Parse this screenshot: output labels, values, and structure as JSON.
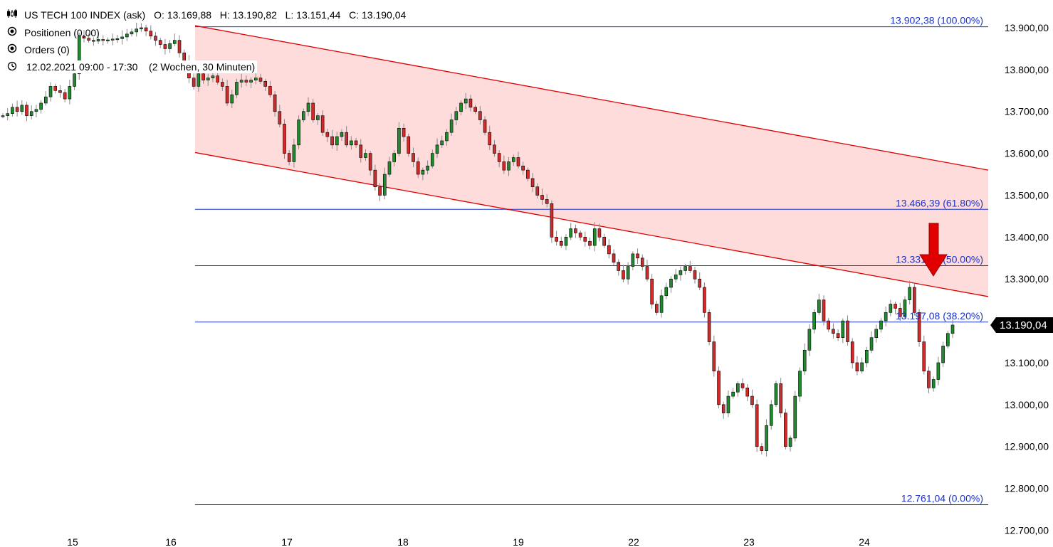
{
  "header": {
    "instrument": "US TECH 100 INDEX (ask)",
    "ohlc": "O: 13.169,88   H: 13.190,82   L: 13.151,44   C: 13.190,04",
    "positions": "Positionen (0,00)",
    "orders": "Orders (0)",
    "period": "12.02.2021 09:00 - 17:30    (2 Wochen, 30 Minuten)"
  },
  "chart_data": {
    "type": "candlestick",
    "title": "US TECH 100 INDEX (ask)",
    "x_tick_labels": [
      "15",
      "16",
      "17",
      "18",
      "19",
      "22",
      "23",
      "24"
    ],
    "y_tick_labels": [
      "13.900,00",
      "13.800,00",
      "13.700,00",
      "13.600,00",
      "13.500,00",
      "13.400,00",
      "13.300,00",
      "13.200,00",
      "13.100,00",
      "13.000,00",
      "12.900,00",
      "12.800,00",
      "12.700,00"
    ],
    "ylim": [
      12700,
      13950
    ],
    "last_price": 13190.04,
    "last_price_label": "13.190,04",
    "fibonacci_levels": [
      {
        "value": 13902.38,
        "label": "13.902,38 (100.00%)"
      },
      {
        "value": 13466.39,
        "label": "13.466,39 (61.80%)"
      },
      {
        "value": 13331.78,
        "label": "13.331,78 (50.00%)"
      },
      {
        "value": 13197.08,
        "label": "13.197,08 (38.20%)"
      },
      {
        "value": 12761.04,
        "label": "12.761,04 (0.00%)"
      }
    ],
    "channel": {
      "upper": {
        "start": 13905,
        "end": 13560
      },
      "lower": {
        "start": 13602,
        "end": 13258
      },
      "fill_color": "#ffdcdc",
      "line_color": "#e00000"
    },
    "arrow_color": "#e00000",
    "up_color": "#1f8a2e",
    "down_color": "#d02a2a",
    "fib_color": "#1a33cc",
    "closes": [
      13690,
      13695,
      13710,
      13700,
      13715,
      13690,
      13700,
      13705,
      13720,
      13735,
      13760,
      13750,
      13745,
      13730,
      13760,
      13790,
      13880,
      13875,
      13870,
      13868,
      13872,
      13870,
      13871,
      13873,
      13874,
      13878,
      13885,
      13890,
      13897,
      13900,
      13892,
      13880,
      13870,
      13860,
      13850,
      13862,
      13870,
      13840,
      13820,
      13780,
      13760,
      13790,
      13775,
      13780,
      13785,
      13770,
      13760,
      13720,
      13740,
      13770,
      13775,
      13770,
      13775,
      13780,
      13772,
      13760,
      13740,
      13700,
      13670,
      13600,
      13580,
      13620,
      13680,
      13700,
      13720,
      13680,
      13690,
      13650,
      13640,
      13620,
      13640,
      13650,
      13620,
      13630,
      13620,
      13590,
      13600,
      13560,
      13520,
      13500,
      13550,
      13580,
      13600,
      13660,
      13640,
      13600,
      13580,
      13550,
      13560,
      13570,
      13600,
      13620,
      13630,
      13650,
      13680,
      13700,
      13720,
      13730,
      13710,
      13700,
      13680,
      13650,
      13620,
      13600,
      13580,
      13560,
      13580,
      13590,
      13570,
      13560,
      13540,
      13520,
      13500,
      13490,
      13480,
      13400,
      13390,
      13380,
      13400,
      13420,
      13410,
      13400,
      13390,
      13380,
      13420,
      13400,
      13380,
      13360,
      13340,
      13320,
      13300,
      13330,
      13360,
      13350,
      13330,
      13300,
      13240,
      13220,
      13260,
      13280,
      13300,
      13310,
      13320,
      13330,
      13320,
      13300,
      13280,
      13220,
      13150,
      13080,
      13000,
      12980,
      13020,
      13030,
      13050,
      13040,
      13020,
      13000,
      12900,
      12890,
      12950,
      13000,
      13050,
      12980,
      12900,
      12920,
      13020,
      13080,
      13130,
      13180,
      13220,
      13250,
      13200,
      13180,
      13170,
      13160,
      13200,
      13150,
      13100,
      13080,
      13100,
      13130,
      13160,
      13180,
      13200,
      13220,
      13240,
      13230,
      13210,
      13250,
      13280,
      13220,
      13150,
      13080,
      13040,
      13060,
      13100,
      13140,
      13170,
      13190.04
    ]
  }
}
